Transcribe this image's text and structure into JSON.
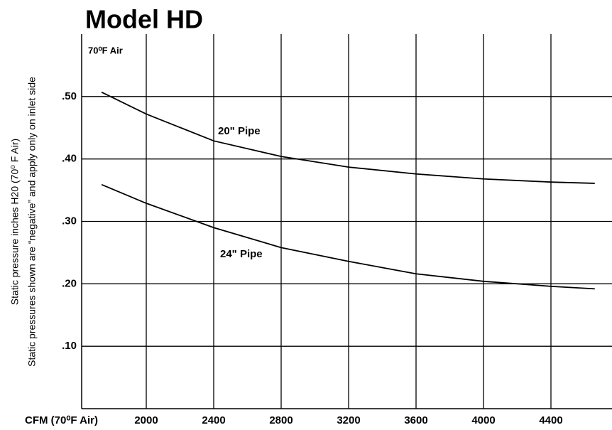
{
  "chart_data": {
    "type": "line",
    "title": "Model HD",
    "annotation": "70⁰F Air",
    "xlabel": "CFM (70⁰F Air)",
    "ylabel": [
      "Static pressure inches H20 (70⁰  F Air)",
      "Static pressures shown are “negative” and apply only on inlet side"
    ],
    "x": [
      1735,
      2000,
      2400,
      2800,
      3200,
      3600,
      4000,
      4400,
      4660
    ],
    "series": [
      {
        "name": "20\" Pipe",
        "color": "#000000",
        "values": [
          0.507,
          0.472,
          0.429,
          0.404,
          0.387,
          0.376,
          0.368,
          0.363,
          0.361
        ]
      },
      {
        "name": "24\" Pipe",
        "color": "#000000",
        "values": [
          0.359,
          0.329,
          0.29,
          0.258,
          0.236,
          0.216,
          0.204,
          0.196,
          0.192
        ]
      }
    ],
    "xlim": [
      1600,
      4760
    ],
    "xticks": [
      2000,
      2400,
      2800,
      3200,
      3600,
      4000,
      4400
    ],
    "ylim": [
      0,
      0.6
    ],
    "yticks": [
      {
        "value": 0.1,
        "label": ".10"
      },
      {
        "value": 0.2,
        "label": ".20"
      },
      {
        "value": 0.3,
        "label": ".30"
      },
      {
        "value": 0.4,
        "label": ".40"
      },
      {
        "value": 0.5,
        "label": ".50"
      }
    ],
    "grid": true
  }
}
